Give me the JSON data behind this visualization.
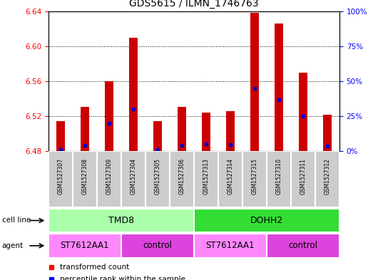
{
  "title": "GDS5615 / ILMN_1746763",
  "samples": [
    "GSM1527307",
    "GSM1527308",
    "GSM1527309",
    "GSM1527304",
    "GSM1527305",
    "GSM1527306",
    "GSM1527313",
    "GSM1527314",
    "GSM1527315",
    "GSM1527310",
    "GSM1527311",
    "GSM1527312"
  ],
  "red_values": [
    6.514,
    6.531,
    6.56,
    6.61,
    6.514,
    6.531,
    6.524,
    6.526,
    6.638,
    6.626,
    6.57,
    6.522
  ],
  "blue_percentiles": [
    1.0,
    4.0,
    20.0,
    30.0,
    1.0,
    4.0,
    5.0,
    4.5,
    45.0,
    37.0,
    25.0,
    3.5
  ],
  "ymin": 6.48,
  "ymax": 6.64,
  "yticks": [
    6.48,
    6.52,
    6.56,
    6.6,
    6.64
  ],
  "y2ticks_pct": [
    0,
    25,
    50,
    75,
    100
  ],
  "y2labels": [
    "0%",
    "25%",
    "50%",
    "75%",
    "100%"
  ],
  "cell_line_groups": [
    {
      "label": "TMD8",
      "start": 0,
      "end": 6,
      "color": "#aaffaa"
    },
    {
      "label": "DOHH2",
      "start": 6,
      "end": 12,
      "color": "#33dd33"
    }
  ],
  "agent_groups": [
    {
      "label": "ST7612AA1",
      "start": 0,
      "end": 3,
      "color": "#ff88ff"
    },
    {
      "label": "control",
      "start": 3,
      "end": 6,
      "color": "#dd44dd"
    },
    {
      "label": "ST7612AA1",
      "start": 6,
      "end": 9,
      "color": "#ff88ff"
    },
    {
      "label": "control",
      "start": 9,
      "end": 12,
      "color": "#dd44dd"
    }
  ],
  "bar_color": "#cc0000",
  "blue_color": "#0000cc",
  "base_value": 6.48,
  "bar_width": 0.35,
  "sample_box_color": "#cccccc"
}
